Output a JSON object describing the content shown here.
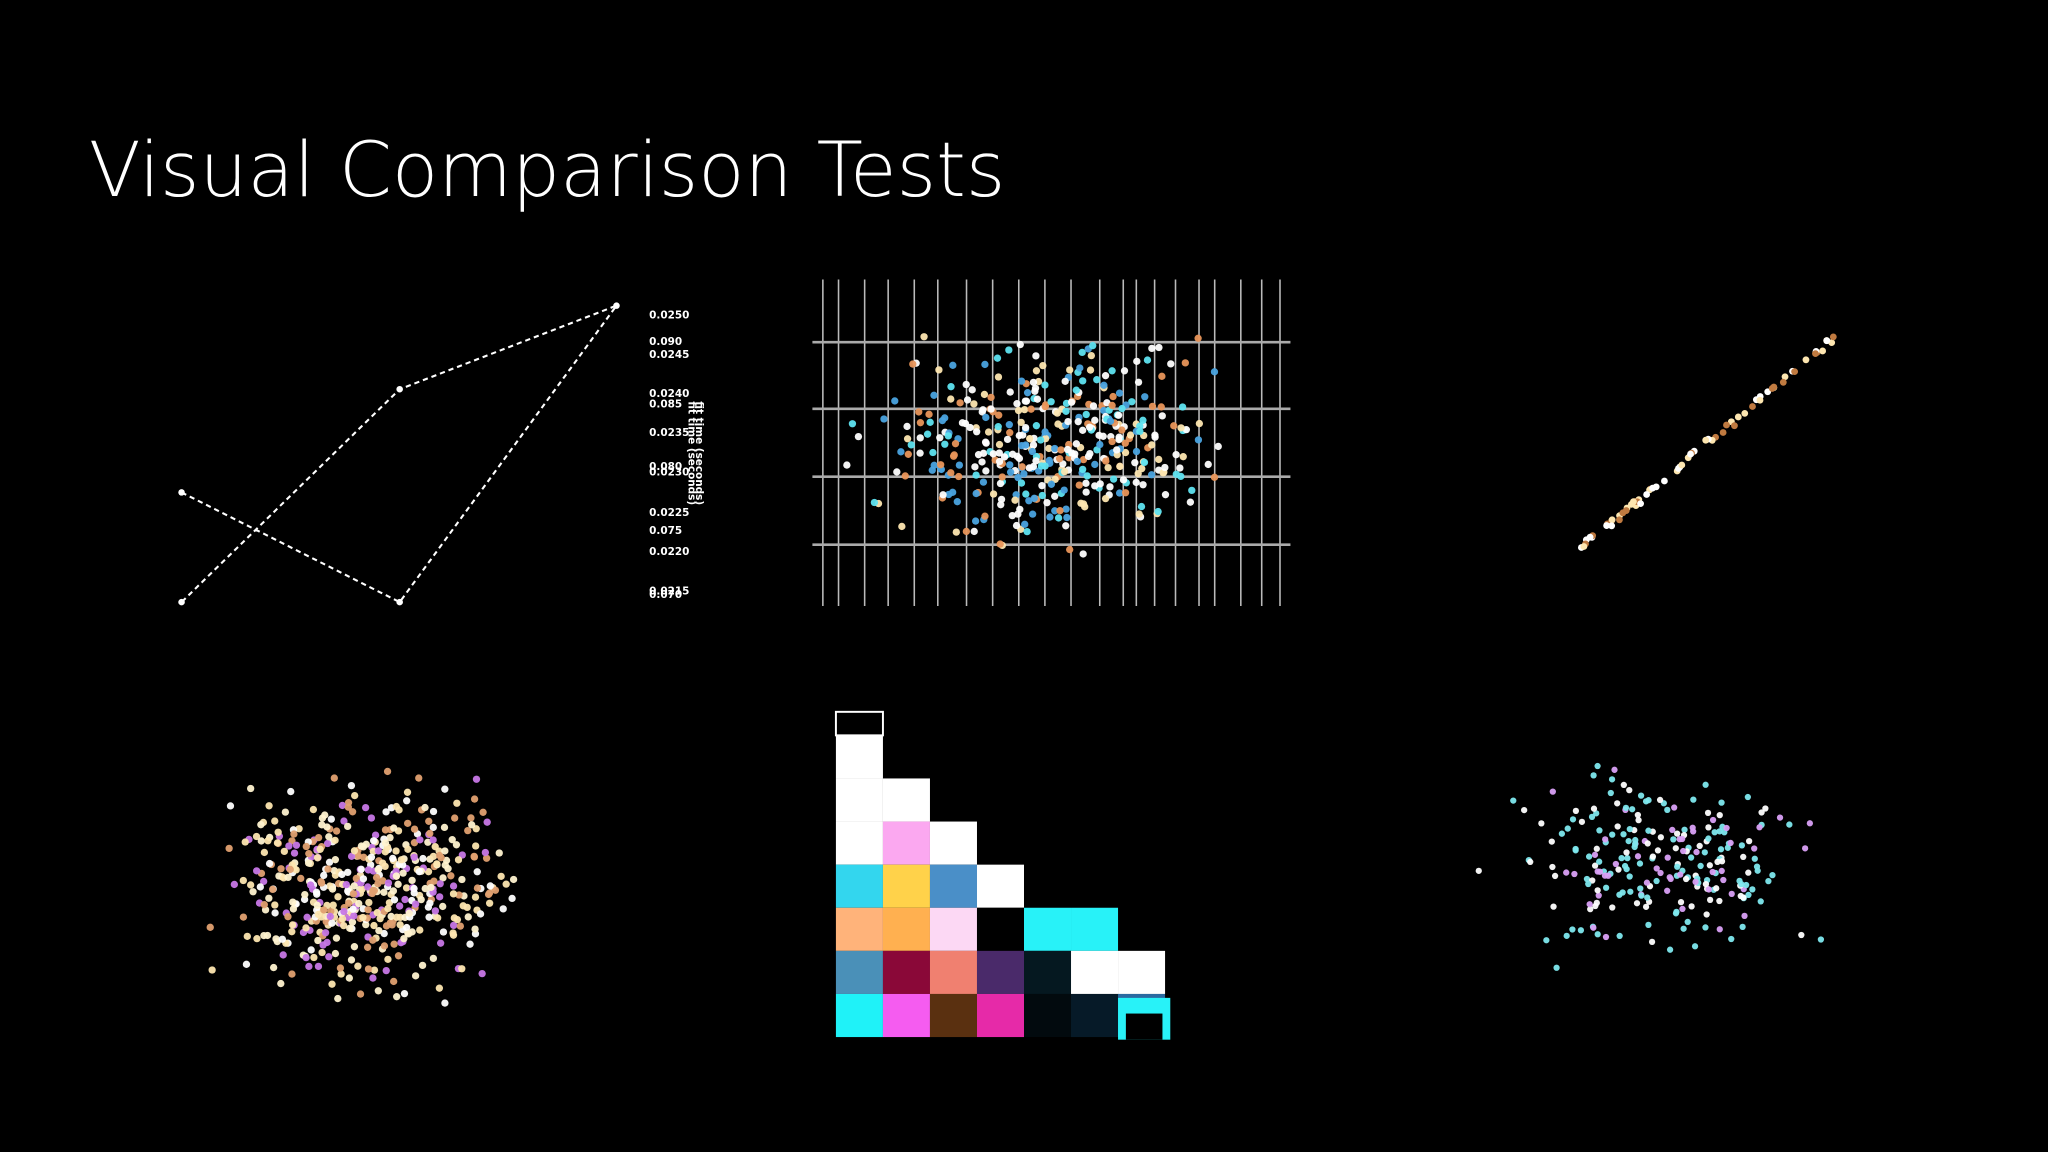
{
  "header": {
    "title": "Visual Comparison Tests"
  },
  "panels": [
    {
      "tick_labels": [
        "0.0250",
        "0.090",
        "0.0245",
        "0.0240",
        "0.085",
        "0.0235",
        "0.080",
        "0.0230",
        "0.0225",
        "0.075",
        "0.0220",
        "0.0215",
        "0.070"
      ],
      "axis_labels": [
        "fit time (seconds)",
        "fit time (seconds)"
      ]
    }
  ]
}
